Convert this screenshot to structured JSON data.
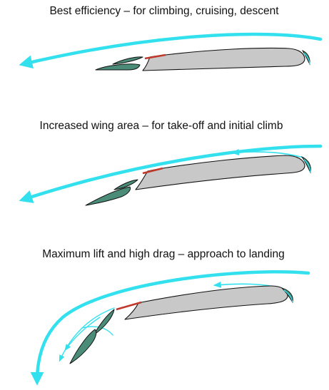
{
  "colors": {
    "airflow": "#33e0ee",
    "wing_fill": "#c8c8c8",
    "flap_fill": "#4a8c78",
    "spoiler": "#c0392b",
    "outline": "#111111",
    "text": "#111111",
    "background": "#ffffff"
  },
  "panels": [
    {
      "title": "Best efficiency – for climbing, cruising, descent",
      "configuration": "cruise"
    },
    {
      "title": "Increased wing area – for take-off and initial climb",
      "configuration": "take-off"
    },
    {
      "title": "Maximum lift and high drag – approach to landing",
      "configuration": "landing"
    }
  ]
}
